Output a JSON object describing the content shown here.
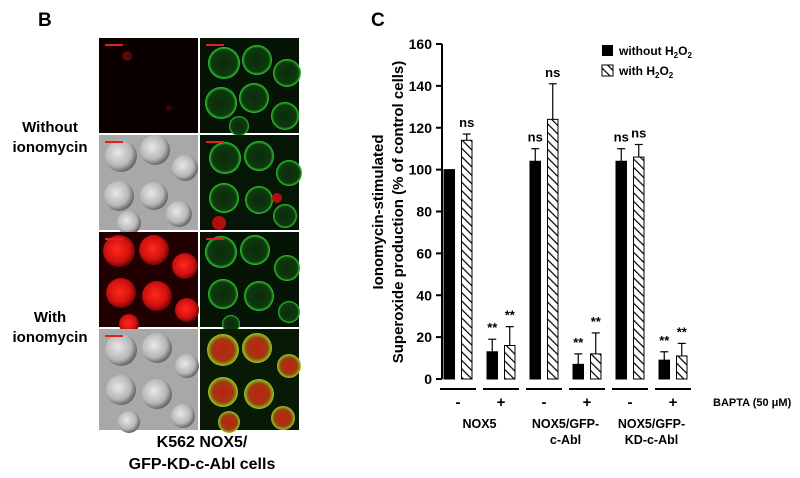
{
  "panel_b": {
    "letter": "B",
    "row_labels": [
      {
        "line1": "Without",
        "line2": "ionomycin"
      },
      {
        "line1": "With",
        "line2": "ionomycin"
      }
    ],
    "caption_line1": "K562 NOX5/",
    "caption_line2": "GFP-KD-c-Abl cells"
  },
  "panel_c": {
    "letter": "C",
    "legend": {
      "without": "without H2O2",
      "with": "with H2O2"
    },
    "treatment_label": "BAPTA (50 μM)",
    "treatment_signs": [
      "-",
      "+",
      "-",
      "+",
      "-",
      "+"
    ],
    "group_labels": [
      {
        "line1": "NOX5",
        "line2": ""
      },
      {
        "line1": "NOX5/GFP-",
        "line2": "c-Abl"
      },
      {
        "line1": "NOX5/GFP-",
        "line2": "KD-c-Abl"
      }
    ]
  },
  "colors": {
    "solid_bar": "#000000",
    "red_channel": "#d01010",
    "green_channel": "#18b818"
  },
  "chart_data": {
    "type": "bar",
    "ylabel_line1": "Ionomycin-stimulated",
    "ylabel_line2": "Superoxide production (% of control cells)",
    "ylim": [
      0,
      160
    ],
    "yticks": [
      0,
      20,
      40,
      60,
      80,
      100,
      120,
      140,
      160
    ],
    "categories": [
      "NOX5 -",
      "NOX5 +",
      "NOX5/GFP-c-Abl -",
      "NOX5/GFP-c-Abl +",
      "NOX5/GFP-KD-c-Abl -",
      "NOX5/GFP-KD-c-Abl +"
    ],
    "series": [
      {
        "name": "without H2O2",
        "pattern": "solid",
        "values": [
          100,
          13,
          104,
          7,
          104,
          9
        ],
        "errors": [
          0,
          6,
          6,
          5,
          6,
          4
        ],
        "annotations": [
          "",
          "**",
          "ns",
          "**",
          "ns",
          "**"
        ]
      },
      {
        "name": "with H2O2",
        "pattern": "hatched",
        "values": [
          114,
          16,
          124,
          12,
          106,
          11
        ],
        "errors": [
          3,
          9,
          17,
          10,
          6,
          6
        ],
        "annotations": [
          "ns",
          "**",
          "ns",
          "**",
          "ns",
          "**"
        ]
      }
    ]
  }
}
